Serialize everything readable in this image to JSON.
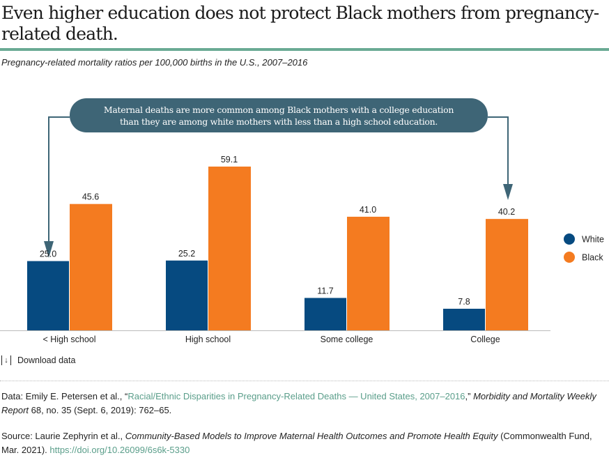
{
  "title": "Even higher education does not protect Black mothers from pregnancy-related death.",
  "subtitle": "Pregnancy-related mortality ratios per 100,000 births in the U.S., 2007–2016",
  "colors": {
    "white": "#064a80",
    "black": "#f47b20",
    "callout": "#3e6576",
    "rule": "#6aaa94",
    "link": "#5a9e8a"
  },
  "callout": {
    "line1": "Maternal deaths are more common among Black mothers with a college education",
    "line2": "than they are among white mothers with less than a high school education."
  },
  "chart_data": {
    "type": "bar",
    "categories": [
      "< High school",
      "High school",
      "Some college",
      "College"
    ],
    "series": [
      {
        "name": "White",
        "values": [
          25.0,
          25.2,
          11.7,
          7.8
        ],
        "labels": [
          "25.0",
          "25.2",
          "11.7",
          "7.8"
        ]
      },
      {
        "name": "Black",
        "values": [
          45.6,
          59.1,
          41.0,
          40.2
        ],
        "labels": [
          "45.6",
          "59.1",
          "41.0",
          "40.2"
        ]
      }
    ],
    "ylim": [
      0,
      60
    ],
    "grid": false,
    "legend_placement": "right"
  },
  "download_label": "Download data",
  "notes": {
    "data_prefix": "Data: Emily E. Petersen et al., “",
    "data_link": "Racial/Ethnic Disparities in Pregnancy-Related Deaths — United States, 2007–2016",
    "data_mid": ",” ",
    "data_journal": "Morbidity and Mortality Weekly Report",
    "data_suffix": " 68, no. 35 (Sept. 6, 2019): 762–65.",
    "source_prefix": "Source: Laurie Zephyrin et al., ",
    "source_title": "Community-Based Models to Improve Maternal Health Outcomes and Promote Health Equity",
    "source_suffix": " (Commonwealth Fund, Mar. 2021). ",
    "source_link": "https://doi.org/10.26099/6s6k-5330"
  }
}
